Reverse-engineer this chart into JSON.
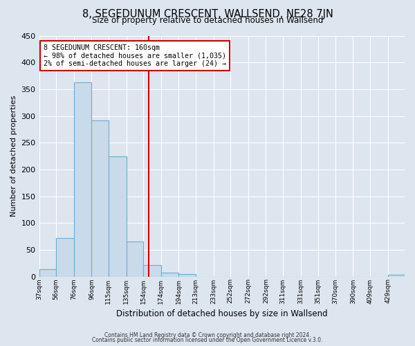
{
  "title": "8, SEGEDUNUM CRESCENT, WALLSEND, NE28 7JN",
  "subtitle": "Size of property relative to detached houses in Wallsend",
  "xlabel": "Distribution of detached houses by size in Wallsend",
  "ylabel": "Number of detached properties",
  "bin_labels": [
    "37sqm",
    "56sqm",
    "76sqm",
    "96sqm",
    "115sqm",
    "135sqm",
    "154sqm",
    "174sqm",
    "194sqm",
    "213sqm",
    "233sqm",
    "252sqm",
    "272sqm",
    "292sqm",
    "311sqm",
    "331sqm",
    "351sqm",
    "370sqm",
    "390sqm",
    "409sqm",
    "429sqm"
  ],
  "bin_edges": [
    37,
    56,
    76,
    96,
    115,
    135,
    154,
    174,
    194,
    213,
    233,
    252,
    272,
    292,
    311,
    331,
    351,
    370,
    390,
    409,
    429
  ],
  "bar_heights": [
    13,
    72,
    363,
    291,
    225,
    65,
    21,
    7,
    5,
    0,
    0,
    0,
    0,
    0,
    0,
    0,
    0,
    0,
    0,
    0,
    3
  ],
  "bar_color": "#c9daea",
  "bar_edge_color": "#6aaed6",
  "vline_x": 160,
  "vline_color": "#cc0000",
  "annotation_title": "8 SEGEDUNUM CRESCENT: 160sqm",
  "annotation_line1": "← 98% of detached houses are smaller (1,035)",
  "annotation_line2": "2% of semi-detached houses are larger (24) →",
  "annotation_box_color": "#cc0000",
  "ylim": [
    0,
    450
  ],
  "yticks": [
    0,
    50,
    100,
    150,
    200,
    250,
    300,
    350,
    400,
    450
  ],
  "footer1": "Contains HM Land Registry data © Crown copyright and database right 2024.",
  "footer2": "Contains public sector information licensed under the Open Government Licence v.3.0.",
  "fig_background_color": "#dde5ef",
  "plot_background_color": "#dde5ef",
  "grid_color": "#ffffff",
  "title_fontsize": 10.5,
  "subtitle_fontsize": 8.5
}
